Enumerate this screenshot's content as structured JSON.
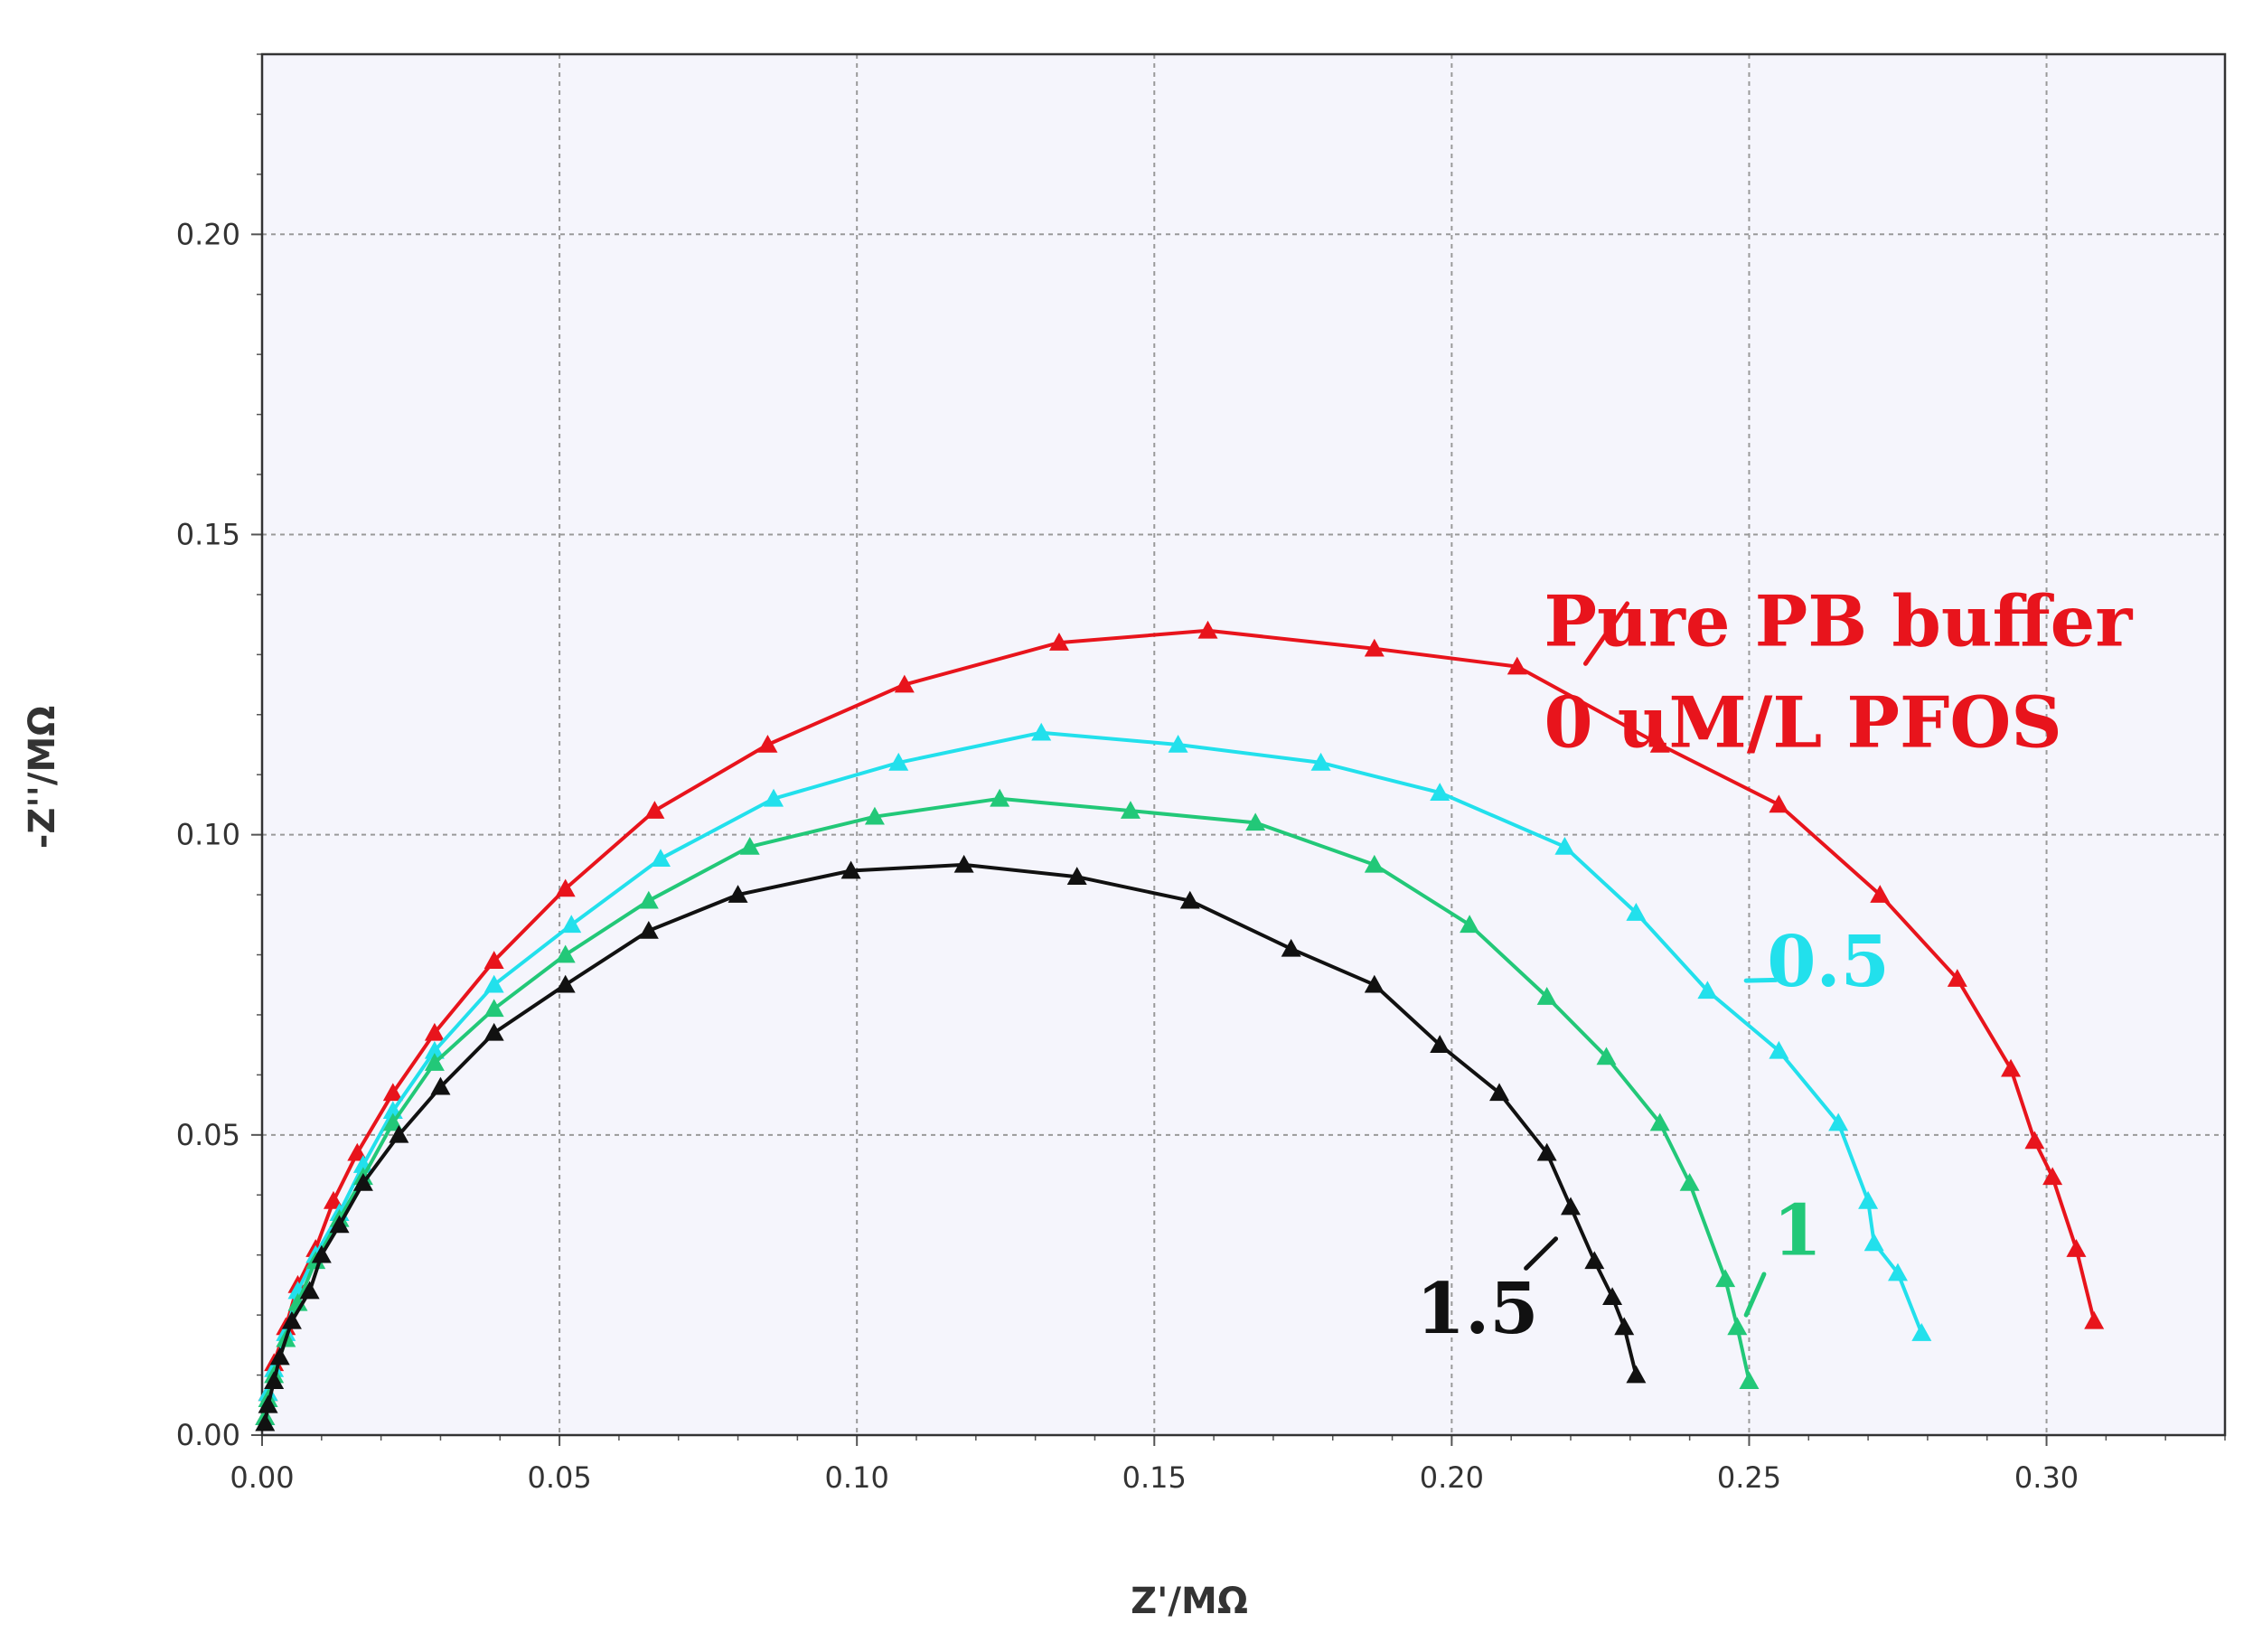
{
  "chart_data": {
    "type": "scatter",
    "title": "",
    "xlabel": "Z'/MΩ",
    "ylabel": "-Z''/MΩ",
    "xlim": [
      0,
      0.33
    ],
    "ylim": [
      0,
      0.23
    ],
    "xticks": [
      "0.00",
      "0.05",
      "0.10",
      "0.15",
      "0.20",
      "0.25",
      "0.30"
    ],
    "yticks": [
      "0.00",
      "0.05",
      "0.10",
      "0.15",
      "0.20"
    ],
    "grid": true,
    "marker": "triangle",
    "plot_background": "#f5f5fc",
    "series": [
      {
        "name": "Pure PB buffer 0 uM/L PFOS",
        "color": "#e8141c",
        "points": [
          [
            0.0005,
            0.003
          ],
          [
            0.001,
            0.007
          ],
          [
            0.002,
            0.012
          ],
          [
            0.004,
            0.018
          ],
          [
            0.006,
            0.025
          ],
          [
            0.009,
            0.031
          ],
          [
            0.012,
            0.039
          ],
          [
            0.016,
            0.047
          ],
          [
            0.022,
            0.057
          ],
          [
            0.029,
            0.067
          ],
          [
            0.039,
            0.079
          ],
          [
            0.051,
            0.091
          ],
          [
            0.066,
            0.104
          ],
          [
            0.085,
            0.115
          ],
          [
            0.108,
            0.125
          ],
          [
            0.134,
            0.132
          ],
          [
            0.159,
            0.134
          ],
          [
            0.187,
            0.131
          ],
          [
            0.211,
            0.128
          ],
          [
            0.235,
            0.115
          ],
          [
            0.255,
            0.105
          ],
          [
            0.272,
            0.09
          ],
          [
            0.285,
            0.076
          ],
          [
            0.294,
            0.061
          ],
          [
            0.298,
            0.049
          ],
          [
            0.301,
            0.043
          ],
          [
            0.305,
            0.031
          ],
          [
            0.308,
            0.019
          ]
        ]
      },
      {
        "name": "0.5",
        "color": "#22e0ec",
        "points": [
          [
            0.0005,
            0.003
          ],
          [
            0.001,
            0.007
          ],
          [
            0.002,
            0.011
          ],
          [
            0.004,
            0.017
          ],
          [
            0.006,
            0.024
          ],
          [
            0.009,
            0.03
          ],
          [
            0.013,
            0.037
          ],
          [
            0.017,
            0.045
          ],
          [
            0.022,
            0.054
          ],
          [
            0.029,
            0.064
          ],
          [
            0.039,
            0.075
          ],
          [
            0.052,
            0.085
          ],
          [
            0.067,
            0.096
          ],
          [
            0.086,
            0.106
          ],
          [
            0.107,
            0.112
          ],
          [
            0.131,
            0.117
          ],
          [
            0.154,
            0.115
          ],
          [
            0.178,
            0.112
          ],
          [
            0.198,
            0.107
          ],
          [
            0.219,
            0.098
          ],
          [
            0.231,
            0.087
          ],
          [
            0.243,
            0.074
          ],
          [
            0.255,
            0.064
          ],
          [
            0.265,
            0.052
          ],
          [
            0.27,
            0.039
          ],
          [
            0.271,
            0.032
          ],
          [
            0.275,
            0.027
          ],
          [
            0.279,
            0.017
          ]
        ]
      },
      {
        "name": "1",
        "color": "#22c878",
        "points": [
          [
            0.0005,
            0.003
          ],
          [
            0.001,
            0.006
          ],
          [
            0.002,
            0.01
          ],
          [
            0.004,
            0.016
          ],
          [
            0.006,
            0.022
          ],
          [
            0.009,
            0.029
          ],
          [
            0.013,
            0.036
          ],
          [
            0.017,
            0.043
          ],
          [
            0.022,
            0.052
          ],
          [
            0.029,
            0.062
          ],
          [
            0.039,
            0.071
          ],
          [
            0.051,
            0.08
          ],
          [
            0.065,
            0.089
          ],
          [
            0.082,
            0.098
          ],
          [
            0.103,
            0.103
          ],
          [
            0.124,
            0.106
          ],
          [
            0.146,
            0.104
          ],
          [
            0.167,
            0.102
          ],
          [
            0.187,
            0.095
          ],
          [
            0.203,
            0.085
          ],
          [
            0.216,
            0.073
          ],
          [
            0.226,
            0.063
          ],
          [
            0.235,
            0.052
          ],
          [
            0.24,
            0.042
          ],
          [
            0.246,
            0.026
          ],
          [
            0.248,
            0.018
          ],
          [
            0.25,
            0.009
          ]
        ]
      },
      {
        "name": "1.5",
        "color": "#111111",
        "points": [
          [
            0.0005,
            0.002
          ],
          [
            0.001,
            0.005
          ],
          [
            0.002,
            0.009
          ],
          [
            0.003,
            0.013
          ],
          [
            0.005,
            0.019
          ],
          [
            0.008,
            0.024
          ],
          [
            0.01,
            0.03
          ],
          [
            0.013,
            0.035
          ],
          [
            0.017,
            0.042
          ],
          [
            0.023,
            0.05
          ],
          [
            0.03,
            0.058
          ],
          [
            0.039,
            0.067
          ],
          [
            0.051,
            0.075
          ],
          [
            0.065,
            0.084
          ],
          [
            0.08,
            0.09
          ],
          [
            0.099,
            0.094
          ],
          [
            0.118,
            0.095
          ],
          [
            0.137,
            0.093
          ],
          [
            0.156,
            0.089
          ],
          [
            0.173,
            0.081
          ],
          [
            0.187,
            0.075
          ],
          [
            0.198,
            0.065
          ],
          [
            0.208,
            0.057
          ],
          [
            0.216,
            0.047
          ],
          [
            0.22,
            0.038
          ],
          [
            0.224,
            0.029
          ],
          [
            0.227,
            0.023
          ],
          [
            0.229,
            0.018
          ],
          [
            0.231,
            0.01
          ]
        ]
      }
    ],
    "annotations": [
      {
        "lines": [
          "Pure PB buffer",
          "0 uM/L PFOS"
        ],
        "color": "#e8141c",
        "anchor": [
          0.2155,
          0.1315
        ],
        "pointer": [
          [
            0.2225,
            0.1285
          ],
          [
            0.2295,
            0.1385
          ]
        ]
      },
      {
        "lines": [
          "0.5"
        ],
        "color": "#22e0ec",
        "anchor": [
          0.253,
          0.0748
        ],
        "pointer": [
          [
            0.2495,
            0.0757
          ],
          [
            0.2545,
            0.0758
          ]
        ]
      },
      {
        "lines": [
          "1"
        ],
        "color": "#22c878",
        "anchor": [
          0.254,
          0.03
        ],
        "pointer": [
          [
            0.2495,
            0.02
          ],
          [
            0.2525,
            0.0268
          ]
        ]
      },
      {
        "lines": [
          "1.5"
        ],
        "color": "#111111",
        "anchor": [
          0.194,
          0.017
        ],
        "pointer": [
          [
            0.2125,
            0.0278
          ],
          [
            0.2175,
            0.0327
          ]
        ]
      }
    ]
  }
}
